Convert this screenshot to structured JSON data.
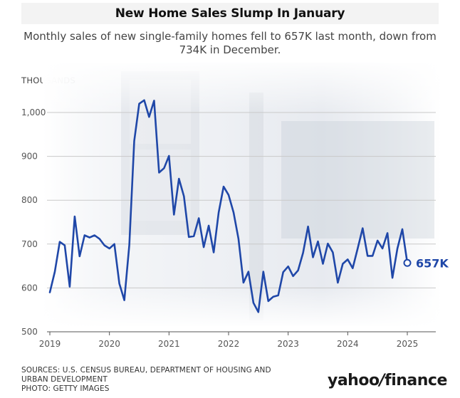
{
  "header": {
    "title": "New Home Sales Slump In January",
    "subtitle": "Monthly sales of new single-family homes fell to 657K last month, down from 734K in December."
  },
  "footer": {
    "sources_line1": "SOURCES: U.S. CENSUS BUREAU, DEPARTMENT OF HOUSING AND URBAN DEVELOPMENT",
    "sources_line2": "PHOTO: GETTY IMAGES",
    "logo_text_left": "yahoo",
    "logo_mark": "/",
    "logo_text_right": "finance"
  },
  "chart_data": {
    "type": "line",
    "ylabel": "THOUSANDS",
    "ylim": [
      500,
      1050
    ],
    "yticks": [
      500,
      600,
      700,
      800,
      900,
      1000
    ],
    "ytick_labels": [
      "500",
      "600",
      "700",
      "800",
      "900",
      "1,000"
    ],
    "xticks": [
      "2019",
      "2020",
      "2021",
      "2022",
      "2023",
      "2024",
      "2025"
    ],
    "grid": true,
    "colors": {
      "line": "#1f47a8",
      "grid": "#c9c9c9"
    },
    "end_label": "657K",
    "series": [
      {
        "x": [
          "2019-01",
          "2019-02",
          "2019-03",
          "2019-04",
          "2019-05",
          "2019-06",
          "2019-07",
          "2019-08",
          "2019-09",
          "2019-10",
          "2019-11",
          "2019-12",
          "2020-01",
          "2020-02",
          "2020-03",
          "2020-04",
          "2020-05",
          "2020-06",
          "2020-07",
          "2020-08",
          "2020-09",
          "2020-10",
          "2020-11",
          "2020-12",
          "2021-01",
          "2021-02",
          "2021-03",
          "2021-04",
          "2021-05",
          "2021-06",
          "2021-07",
          "2021-08",
          "2021-09",
          "2021-10",
          "2021-11",
          "2021-12",
          "2022-01",
          "2022-02",
          "2022-03",
          "2022-04",
          "2022-05",
          "2022-06",
          "2022-07",
          "2022-08",
          "2022-09",
          "2022-10",
          "2022-11",
          "2022-12",
          "2023-01",
          "2023-02",
          "2023-03",
          "2023-04",
          "2023-05",
          "2023-06",
          "2023-07",
          "2023-08",
          "2023-09",
          "2023-10",
          "2023-11",
          "2023-12",
          "2024-01",
          "2024-02",
          "2024-03",
          "2024-04",
          "2024-05",
          "2024-06",
          "2024-07",
          "2024-08",
          "2024-09",
          "2024-10",
          "2024-11",
          "2024-12",
          "2025-01"
        ],
        "values": [
          590,
          637,
          705,
          697,
          603,
          763,
          672,
          720,
          715,
          720,
          712,
          697,
          690,
          700,
          610,
          572,
          698,
          935,
          1020,
          1028,
          990,
          1027,
          863,
          873,
          901,
          767,
          849,
          809,
          716,
          718,
          759,
          693,
          742,
          681,
          772,
          831,
          812,
          772,
          712,
          612,
          637,
          566,
          545,
          637,
          570,
          580,
          583,
          636,
          649,
          627,
          640,
          680,
          740,
          670,
          706,
          655,
          701,
          681,
          612,
          655,
          665,
          645,
          690,
          736,
          673,
          673,
          708,
          690,
          725,
          623,
          690,
          734,
          657
        ]
      }
    ]
  }
}
